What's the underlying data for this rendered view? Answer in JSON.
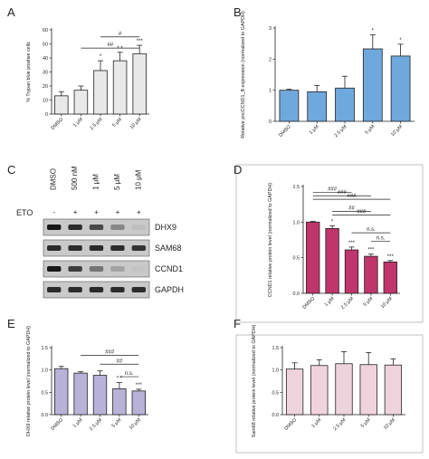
{
  "colors": {
    "A": "#e8e8e8",
    "B": "#6fa8dc",
    "D": "#c0356b",
    "E": "#b8b2d8",
    "F": "#efd3dc",
    "axis": "#222222"
  },
  "chart_data": [
    {
      "panel": "A",
      "type": "bar",
      "ylabel": "% Trypan blue positive cells",
      "ylim": [
        0,
        60
      ],
      "yticks": [
        "0",
        "10",
        "20",
        "30",
        "40",
        "50",
        "60"
      ],
      "categories": [
        "DMSO",
        "1 μM",
        "2.5 μM",
        "5 μM",
        "10 μM"
      ],
      "values": [
        13,
        17,
        31,
        38,
        43
      ],
      "errors": [
        3,
        3,
        7,
        6,
        6
      ],
      "stars": [
        "",
        "",
        "*",
        "* *",
        "***"
      ],
      "brackets": [
        {
          "label": "##",
          "from": 1,
          "to": 4,
          "y": 47
        },
        {
          "label": "#",
          "from": 2,
          "to": 4,
          "y": 55
        }
      ]
    },
    {
      "panel": "B",
      "type": "bar",
      "ylabel": "Relative pncCCND1_B expression (normalized to GAPDH)",
      "ylim": [
        0,
        3
      ],
      "yticks": [
        "0",
        "1",
        "2",
        "3"
      ],
      "categories": [
        "DMSO",
        "1 μM",
        "2.5 μM",
        "5 μM",
        "10 μM"
      ],
      "values": [
        1.0,
        0.95,
        1.07,
        2.33,
        2.1
      ],
      "errors": [
        0.03,
        0.2,
        0.38,
        0.45,
        0.38
      ],
      "stars": [
        "",
        "",
        "",
        "*",
        "*"
      ],
      "brackets": []
    },
    {
      "panel": "D",
      "type": "bar",
      "ylabel": "CCND1 relative protein level (normalized to GAPDH)",
      "ylim": [
        0,
        1.5
      ],
      "yticks": [
        "0.0",
        "0.5",
        "1.0",
        "1.5"
      ],
      "categories": [
        "DMSO",
        "1 μM",
        "2.5 μM",
        "5 μM",
        "10 μM"
      ],
      "values": [
        1.0,
        0.91,
        0.61,
        0.52,
        0.44
      ],
      "errors": [
        0.01,
        0.04,
        0.04,
        0.03,
        0.02
      ],
      "stars": [
        "",
        "*",
        "***",
        "***",
        "***"
      ],
      "brackets": [
        {
          "label": "###",
          "from": 0,
          "to": 2,
          "y": 1.42
        },
        {
          "label": "###",
          "from": 0,
          "to": 3,
          "y": 1.37
        },
        {
          "label": "###",
          "from": 0,
          "to": 4,
          "y": 1.32
        },
        {
          "label": "##",
          "from": 1,
          "to": 3,
          "y": 1.15
        },
        {
          "label": "###",
          "from": 1,
          "to": 4,
          "y": 1.1
        },
        {
          "label": "n.s.",
          "from": 2,
          "to": 4,
          "y": 0.85
        },
        {
          "label": "n.s.",
          "from": 3,
          "to": 4,
          "y": 0.73
        }
      ]
    },
    {
      "panel": "E",
      "type": "bar",
      "ylabel": "DHX9 relative protein level (normalized to GAPDH)",
      "ylim": [
        0,
        1.5
      ],
      "yticks": [
        "0.0",
        "0.5",
        "1.0",
        "1.5"
      ],
      "categories": [
        "DMSO",
        "1 μM",
        "2.5 μM",
        "5 μM",
        "10 μM"
      ],
      "values": [
        1.03,
        0.93,
        0.88,
        0.58,
        0.53
      ],
      "errors": [
        0.05,
        0.03,
        0.1,
        0.14,
        0.04
      ],
      "stars": [
        "",
        "",
        "",
        "* *",
        "***"
      ],
      "brackets": [
        {
          "label": "###",
          "from": 1,
          "to": 4,
          "y": 1.33
        },
        {
          "label": "##",
          "from": 2,
          "to": 4,
          "y": 1.13
        },
        {
          "label": "n.s.",
          "from": 3,
          "to": 4,
          "y": 0.85
        }
      ]
    },
    {
      "panel": "F",
      "type": "bar",
      "ylabel": "Sam68 relative protein level (normalized to GAPDH)",
      "ylim": [
        0,
        1.5
      ],
      "yticks": [
        "0.0",
        "0.5",
        "1.0",
        "1.5"
      ],
      "categories": [
        "DMSO",
        "1 μM",
        "2.5 μM",
        "5 μM",
        "10 μM"
      ],
      "values": [
        1.02,
        1.1,
        1.14,
        1.12,
        1.11
      ],
      "errors": [
        0.14,
        0.13,
        0.27,
        0.27,
        0.14
      ],
      "stars": [
        "",
        "",
        "",
        "",
        ""
      ],
      "brackets": []
    }
  ],
  "blot": {
    "panel": "C",
    "treatment_label": "ETO",
    "lanes": [
      "DMSO",
      "500 nM",
      "1 μM",
      "5 μM",
      "10 μM"
    ],
    "signs": [
      "-",
      "+",
      "+",
      "+",
      "+"
    ],
    "rows": [
      {
        "name": "DHX9",
        "intensity": [
          0.95,
          0.85,
          0.7,
          0.35,
          0.05
        ]
      },
      {
        "name": "SAM68",
        "intensity": [
          0.85,
          0.85,
          0.85,
          0.85,
          0.8
        ]
      },
      {
        "name": "CCND1",
        "intensity": [
          0.95,
          0.75,
          0.45,
          0.2,
          0.02
        ]
      },
      {
        "name": "GAPDH",
        "intensity": [
          0.85,
          0.85,
          0.85,
          0.85,
          0.85
        ]
      }
    ]
  }
}
